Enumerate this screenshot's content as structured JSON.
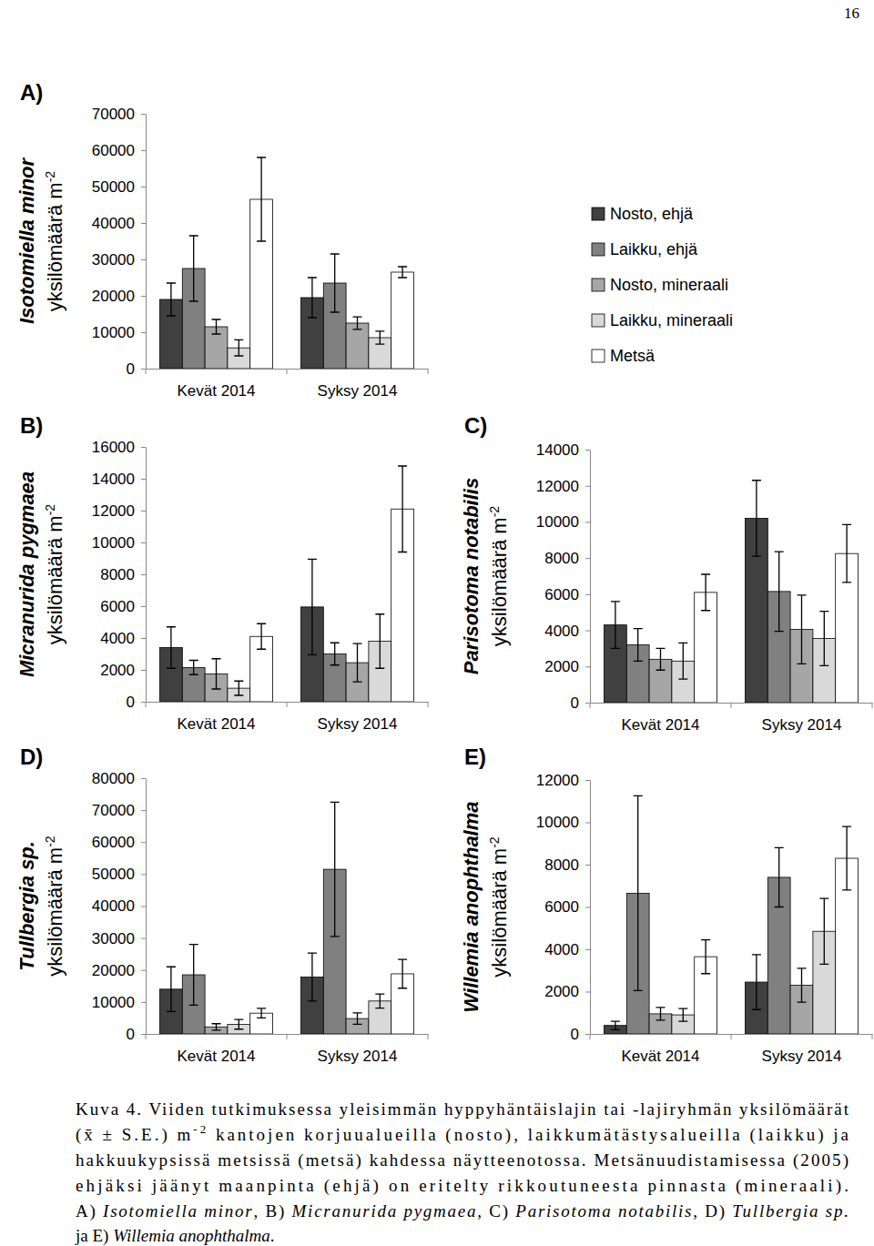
{
  "page_number": "16",
  "chart_data": [
    {
      "type": "bar",
      "panel": "A)",
      "ylabel": {
        "species": "Isotomiella minor",
        "unit": "yksilömäärä m",
        "unit_sup": "-2"
      },
      "categories": [
        "Kevät 2014",
        "Syksy 2014"
      ],
      "series": [
        {
          "color": "#404040",
          "values": [
            19000,
            19500
          ],
          "errors": [
            4500,
            5500
          ]
        },
        {
          "color": "#808080",
          "values": [
            27500,
            23500
          ],
          "errors": [
            9000,
            8000
          ]
        },
        {
          "color": "#a6a6a6",
          "values": [
            11500,
            12500
          ],
          "errors": [
            2000,
            1700
          ]
        },
        {
          "color": "#d9d9d9",
          "values": [
            5700,
            8500
          ],
          "errors": [
            2200,
            1800
          ]
        },
        {
          "color": "#ffffff",
          "values": [
            46500,
            26500
          ],
          "errors": [
            11500,
            1500
          ]
        }
      ],
      "ylim": [
        0,
        70000
      ],
      "yticks": [
        0,
        10000,
        20000,
        30000,
        40000,
        50000,
        60000,
        70000
      ]
    },
    {
      "type": "bar",
      "panel": "B)",
      "ylabel": {
        "species": "Micranurida pygmaea",
        "unit": "yksilömäärä m",
        "unit_sup": "-2"
      },
      "categories": [
        "Kevät 2014",
        "Syksy 2014"
      ],
      "series": [
        {
          "color": "#404040",
          "values": [
            3400,
            5950
          ],
          "errors": [
            1300,
            3000
          ]
        },
        {
          "color": "#808080",
          "values": [
            2150,
            3000
          ],
          "errors": [
            450,
            700
          ]
        },
        {
          "color": "#a6a6a6",
          "values": [
            1750,
            2450
          ],
          "errors": [
            950,
            1200
          ]
        },
        {
          "color": "#d9d9d9",
          "values": [
            850,
            3800
          ],
          "errors": [
            450,
            1700
          ]
        },
        {
          "color": "#ffffff",
          "values": [
            4100,
            12100
          ],
          "errors": [
            800,
            2700
          ]
        }
      ],
      "ylim": [
        0,
        16000
      ],
      "yticks": [
        0,
        2000,
        4000,
        6000,
        8000,
        10000,
        12000,
        14000,
        16000
      ]
    },
    {
      "type": "bar",
      "panel": "C)",
      "legend": "top",
      "ylabel": {
        "species": "Parisotoma notabilis",
        "unit": "yksilömäärä m",
        "unit_sup": "-2"
      },
      "categories": [
        "Kevät 2014",
        "Syksy 2014"
      ],
      "series": [
        {
          "name": "Nosto, ehjä",
          "color": "#404040",
          "values": [
            4300,
            10200
          ],
          "errors": [
            1300,
            2100
          ]
        },
        {
          "name": "Laikku, ehjä",
          "color": "#808080",
          "values": [
            3200,
            6150
          ],
          "errors": [
            900,
            2200
          ]
        },
        {
          "name": "Nosto, mineraali",
          "color": "#a6a6a6",
          "values": [
            2400,
            4050
          ],
          "errors": [
            600,
            1900
          ]
        },
        {
          "name": "Laikku, mineraali",
          "color": "#d9d9d9",
          "values": [
            2300,
            3550
          ],
          "errors": [
            1000,
            1500
          ]
        },
        {
          "name": "Metsä",
          "color": "#ffffff",
          "values": [
            6100,
            8250
          ],
          "errors": [
            1000,
            1600
          ]
        }
      ],
      "ylim": [
        0,
        14000
      ],
      "yticks": [
        0,
        2000,
        4000,
        6000,
        8000,
        10000,
        12000,
        14000
      ]
    },
    {
      "type": "bar",
      "panel": "D)",
      "ylabel": {
        "species": "Tullbergia sp.",
        "unit": "yksilömäärä m",
        "unit_sup": "-2"
      },
      "categories": [
        "Kevät 2014",
        "Syksy 2014"
      ],
      "series": [
        {
          "color": "#404040",
          "values": [
            14000,
            17800
          ],
          "errors": [
            7000,
            7500
          ]
        },
        {
          "color": "#808080",
          "values": [
            18500,
            51500
          ],
          "errors": [
            9500,
            21000
          ]
        },
        {
          "color": "#a6a6a6",
          "values": [
            2200,
            4800
          ],
          "errors": [
            1000,
            1800
          ]
        },
        {
          "color": "#d9d9d9",
          "values": [
            3000,
            10300
          ],
          "errors": [
            1500,
            2200
          ]
        },
        {
          "color": "#ffffff",
          "values": [
            6500,
            18800
          ],
          "errors": [
            1500,
            4500
          ]
        }
      ],
      "ylim": [
        0,
        80000
      ],
      "yticks": [
        0,
        10000,
        20000,
        30000,
        40000,
        50000,
        60000,
        70000,
        80000
      ]
    },
    {
      "type": "bar",
      "panel": "E)",
      "ylabel": {
        "species": "Willemia anophthalma",
        "unit": "yksilömäärä m",
        "unit_sup": "-2"
      },
      "categories": [
        "Kevät 2014",
        "Syksy 2014"
      ],
      "series": [
        {
          "color": "#404040",
          "values": [
            400,
            2450
          ],
          "errors": [
            200,
            1300
          ]
        },
        {
          "color": "#808080",
          "values": [
            6650,
            7400
          ],
          "errors": [
            4600,
            1400
          ]
        },
        {
          "color": "#a6a6a6",
          "values": [
            950,
            2300
          ],
          "errors": [
            300,
            800
          ]
        },
        {
          "color": "#d9d9d9",
          "values": [
            900,
            4850
          ],
          "errors": [
            300,
            1550
          ]
        },
        {
          "color": "#ffffff",
          "values": [
            3650,
            8300
          ],
          "errors": [
            800,
            1500
          ]
        }
      ],
      "ylim": [
        0,
        12000
      ],
      "yticks": [
        0,
        2000,
        4000,
        6000,
        8000,
        10000,
        12000
      ]
    }
  ],
  "caption": {
    "lines": [
      [
        {
          "text": "Kuva 4. Viiden tutkimuksessa yleisimmän hyppyhäntäislajin tai -lajiryhmän yksilömäärät"
        }
      ],
      [
        {
          "text": "(x̄ ± S.E.) m"
        },
        {
          "text": "-2",
          "sup": true
        },
        {
          "text": " kantojen korjuualueilla (nosto), laikkumätästysalueilla (laikku) ja"
        }
      ],
      [
        {
          "text": "hakkuukypsissä metsissä (metsä) kahdessa näytteenotossa. Metsänuudistamisessa (2005)"
        }
      ],
      [
        {
          "text": "ehjäksi jäänyt maanpinta (ehjä) on eritelty rikkoutuneesta pinnasta (mineraali)."
        }
      ],
      [
        {
          "text": "A) "
        },
        {
          "text": "Isotomiella minor",
          "italic": true
        },
        {
          "text": ", B) "
        },
        {
          "text": "Micranurida pygmaea",
          "italic": true
        },
        {
          "text": ", C) "
        },
        {
          "text": "Parisotoma notabilis",
          "italic": true
        },
        {
          "text": ", D) "
        },
        {
          "text": "Tullbergia sp.",
          "italic": true
        }
      ],
      [
        {
          "text": "ja E) "
        },
        {
          "text": "Willemia anophthalma",
          "italic": true
        },
        {
          "text": "."
        }
      ]
    ]
  }
}
